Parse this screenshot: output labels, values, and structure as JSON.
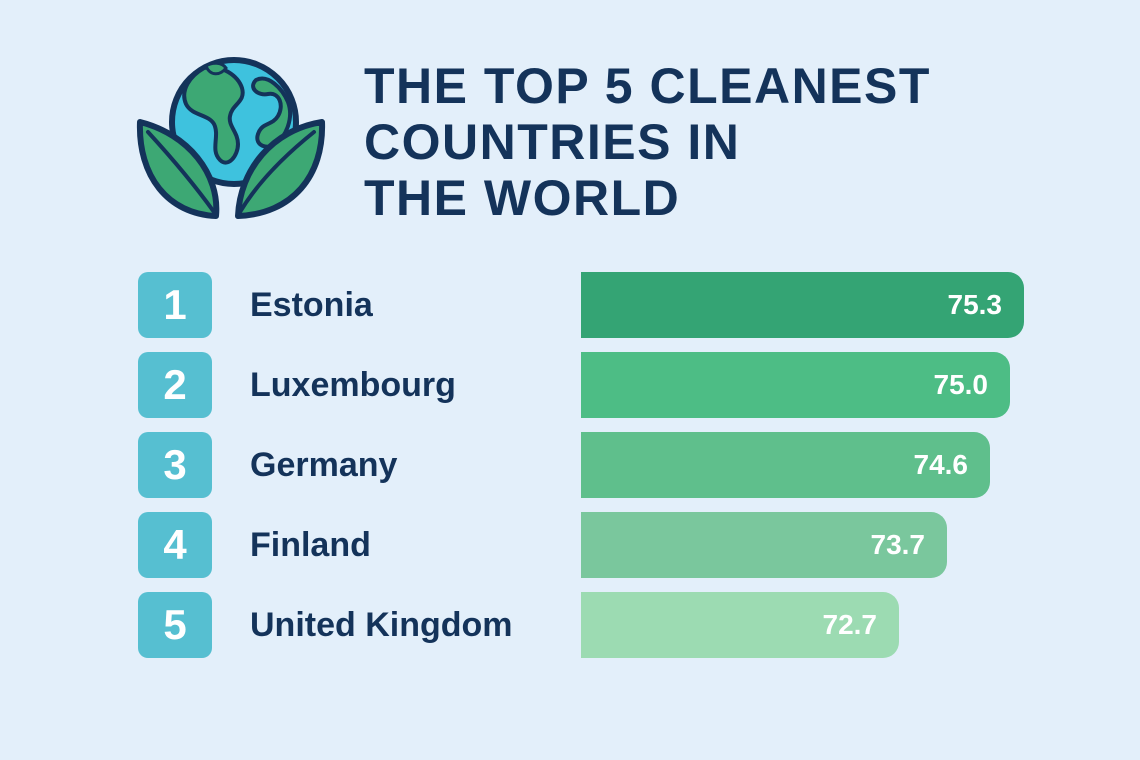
{
  "title_lines": [
    "THE TOP 5 CLEANEST",
    "COUNTRIES IN",
    "THE WORLD"
  ],
  "colors": {
    "background": "#e3effa",
    "title": "#14335a",
    "badge": "#56bfd1",
    "bars": [
      "#34a474",
      "#4dbd85",
      "#5fbf8c",
      "#7ac79d",
      "#9cdbb2"
    ]
  },
  "chart_data": {
    "type": "bar",
    "orientation": "horizontal",
    "title": "THE TOP 5 CLEANEST COUNTRIES IN THE WORLD",
    "ranks": [
      "1",
      "2",
      "3",
      "4",
      "5"
    ],
    "categories": [
      "Estonia",
      "Luxembourg",
      "Germany",
      "Finland",
      "United Kingdom"
    ],
    "values": [
      75.3,
      75.0,
      74.6,
      73.7,
      72.7
    ],
    "value_labels": [
      "75.3",
      "75.0",
      "74.6",
      "73.7",
      "72.7"
    ]
  }
}
